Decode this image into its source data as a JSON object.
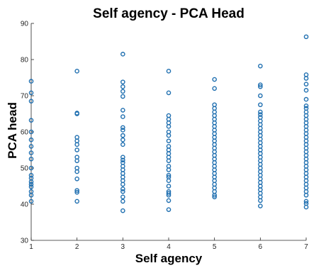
{
  "chart_data": {
    "type": "scatter",
    "title": "Self agency  - PCA Head",
    "xlabel": "Self agency",
    "ylabel": "PCA head",
    "xlim": [
      1,
      7
    ],
    "ylim": [
      30,
      90
    ],
    "xticks": [
      1,
      2,
      3,
      4,
      5,
      6,
      7
    ],
    "yticks": [
      30,
      40,
      50,
      60,
      70,
      80,
      90
    ],
    "grid": false,
    "marker": "open-circle",
    "marker_color": "#1f6fb0",
    "series": [
      {
        "points": [
          [
            1,
            74.0
          ],
          [
            1,
            70.8
          ],
          [
            1,
            68.5
          ],
          [
            1,
            63.2
          ],
          [
            1,
            60.0
          ],
          [
            1,
            57.8
          ],
          [
            1,
            56.0
          ],
          [
            1,
            54.2
          ],
          [
            1,
            52.5
          ],
          [
            1,
            50.0
          ],
          [
            1,
            48.0
          ],
          [
            1,
            47.2
          ],
          [
            1,
            46.2
          ],
          [
            1,
            45.5
          ],
          [
            1,
            44.8
          ],
          [
            1,
            43.5
          ],
          [
            1,
            42.5
          ],
          [
            1,
            40.8
          ],
          [
            2,
            76.8
          ],
          [
            2,
            65.2
          ],
          [
            2,
            65.0
          ],
          [
            2,
            58.5
          ],
          [
            2,
            57.5
          ],
          [
            2,
            56.5
          ],
          [
            2,
            55.0
          ],
          [
            2,
            53.0
          ],
          [
            2,
            52.0
          ],
          [
            2,
            50.0
          ],
          [
            2,
            49.0
          ],
          [
            2,
            47.0
          ],
          [
            2,
            43.8
          ],
          [
            2,
            43.3
          ],
          [
            2,
            40.8
          ],
          [
            3,
            81.5
          ],
          [
            3,
            73.8
          ],
          [
            3,
            72.5
          ],
          [
            3,
            71.2
          ],
          [
            3,
            69.8
          ],
          [
            3,
            66.0
          ],
          [
            3,
            64.2
          ],
          [
            3,
            61.2
          ],
          [
            3,
            60.5
          ],
          [
            3,
            59.0
          ],
          [
            3,
            57.8
          ],
          [
            3,
            56.5
          ],
          [
            3,
            53.0
          ],
          [
            3,
            52.2
          ],
          [
            3,
            51.5
          ],
          [
            3,
            50.5
          ],
          [
            3,
            49.5
          ],
          [
            3,
            48.5
          ],
          [
            3,
            47.5
          ],
          [
            3,
            46.5
          ],
          [
            3,
            45.5
          ],
          [
            3,
            44.2
          ],
          [
            3,
            43.5
          ],
          [
            3,
            42.0
          ],
          [
            3,
            40.8
          ],
          [
            3,
            38.2
          ],
          [
            4,
            76.8
          ],
          [
            4,
            70.8
          ],
          [
            4,
            64.5
          ],
          [
            4,
            63.5
          ],
          [
            4,
            62.5
          ],
          [
            4,
            61.5
          ],
          [
            4,
            60.0
          ],
          [
            4,
            59.0
          ],
          [
            4,
            57.5
          ],
          [
            4,
            56.0
          ],
          [
            4,
            55.0
          ],
          [
            4,
            54.0
          ],
          [
            4,
            53.0
          ],
          [
            4,
            52.0
          ],
          [
            4,
            50.5
          ],
          [
            4,
            49.5
          ],
          [
            4,
            48.0
          ],
          [
            4,
            47.5
          ],
          [
            4,
            46.5
          ],
          [
            4,
            45.0
          ],
          [
            4,
            43.5
          ],
          [
            4,
            43.0
          ],
          [
            4,
            42.5
          ],
          [
            4,
            41.0
          ],
          [
            4,
            38.5
          ],
          [
            5,
            74.5
          ],
          [
            5,
            72.0
          ],
          [
            5,
            67.5
          ],
          [
            5,
            66.5
          ],
          [
            5,
            65.5
          ],
          [
            5,
            64.5
          ],
          [
            5,
            63.5
          ],
          [
            5,
            62.5
          ],
          [
            5,
            61.5
          ],
          [
            5,
            60.5
          ],
          [
            5,
            59.5
          ],
          [
            5,
            58.5
          ],
          [
            5,
            57.5
          ],
          [
            5,
            56.5
          ],
          [
            5,
            55.5
          ],
          [
            5,
            54.5
          ],
          [
            5,
            53.5
          ],
          [
            5,
            52.5
          ],
          [
            5,
            51.5
          ],
          [
            5,
            50.5
          ],
          [
            5,
            49.5
          ],
          [
            5,
            48.5
          ],
          [
            5,
            47.5
          ],
          [
            5,
            46.5
          ],
          [
            5,
            45.5
          ],
          [
            5,
            44.5
          ],
          [
            5,
            43.5
          ],
          [
            5,
            42.5
          ],
          [
            5,
            42.0
          ],
          [
            6,
            78.2
          ],
          [
            6,
            73.0
          ],
          [
            6,
            72.5
          ],
          [
            6,
            70.0
          ],
          [
            6,
            67.5
          ],
          [
            6,
            65.5
          ],
          [
            6,
            64.8
          ],
          [
            6,
            64.0
          ],
          [
            6,
            63.0
          ],
          [
            6,
            62.0
          ],
          [
            6,
            61.0
          ],
          [
            6,
            60.0
          ],
          [
            6,
            59.0
          ],
          [
            6,
            58.0
          ],
          [
            6,
            57.0
          ],
          [
            6,
            56.0
          ],
          [
            6,
            55.0
          ],
          [
            6,
            54.0
          ],
          [
            6,
            53.0
          ],
          [
            6,
            52.0
          ],
          [
            6,
            51.0
          ],
          [
            6,
            50.0
          ],
          [
            6,
            49.0
          ],
          [
            6,
            48.0
          ],
          [
            6,
            47.0
          ],
          [
            6,
            46.0
          ],
          [
            6,
            45.0
          ],
          [
            6,
            44.0
          ],
          [
            6,
            43.0
          ],
          [
            6,
            42.0
          ],
          [
            6,
            41.0
          ],
          [
            6,
            39.5
          ],
          [
            7,
            86.3
          ],
          [
            7,
            75.8
          ],
          [
            7,
            74.8
          ],
          [
            7,
            73.2
          ],
          [
            7,
            71.5
          ],
          [
            7,
            69.0
          ],
          [
            7,
            67.2
          ],
          [
            7,
            66.5
          ],
          [
            7,
            65.5
          ],
          [
            7,
            64.5
          ],
          [
            7,
            63.5
          ],
          [
            7,
            62.5
          ],
          [
            7,
            61.5
          ],
          [
            7,
            60.5
          ],
          [
            7,
            59.5
          ],
          [
            7,
            58.5
          ],
          [
            7,
            57.5
          ],
          [
            7,
            56.5
          ],
          [
            7,
            55.5
          ],
          [
            7,
            54.5
          ],
          [
            7,
            53.5
          ],
          [
            7,
            52.5
          ],
          [
            7,
            51.5
          ],
          [
            7,
            50.5
          ],
          [
            7,
            49.5
          ],
          [
            7,
            48.5
          ],
          [
            7,
            47.5
          ],
          [
            7,
            46.5
          ],
          [
            7,
            45.5
          ],
          [
            7,
            44.5
          ],
          [
            7,
            43.5
          ],
          [
            7,
            42.5
          ],
          [
            7,
            40.8
          ],
          [
            7,
            40.2
          ],
          [
            7,
            39.2
          ]
        ]
      }
    ]
  }
}
